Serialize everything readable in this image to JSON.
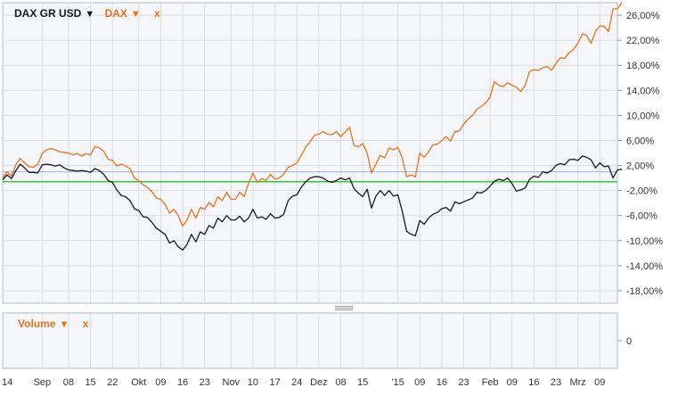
{
  "legend": {
    "series1_label": "DAX GR USD",
    "series1_arrow": "▼",
    "series2_label": "DAX",
    "series2_arrow": "▼",
    "close_label": "x",
    "volume_label": "Volume",
    "volume_arrow": "▼",
    "volume_close": "x"
  },
  "colors": {
    "series1": "#1a1a1a",
    "series2": "#e8731c",
    "baseline": "#33cc33",
    "refline": "#9db3d6",
    "grid": "#dcdcdc",
    "panel_bg": "#f4f6f9"
  },
  "chart_data": [
    {
      "type": "line",
      "ylim": [
        -20,
        28
      ],
      "y_ticks": [
        "26,00%",
        "22,00%",
        "18,00%",
        "14,00%",
        "10,00%",
        "6,00%",
        "2,00%",
        "-2,00%",
        "-6,00%",
        "-10,00%",
        "-14,00%",
        "-18,00%"
      ],
      "y_tick_values": [
        26,
        22,
        18,
        14,
        10,
        6,
        2,
        -2,
        -6,
        -10,
        -14,
        -18
      ],
      "x_ticks": [
        "14",
        "Sep",
        "08",
        "15",
        "22",
        "Okt",
        "09",
        "16",
        "23",
        "Nov",
        "10",
        "17",
        "24",
        "Dez",
        "08",
        "15",
        "'15",
        "09",
        "16",
        "23",
        "Feb",
        "09",
        "16",
        "23",
        "Mrz",
        "09"
      ],
      "x_tick_index": [
        0,
        9,
        15,
        20,
        25,
        31,
        36,
        41,
        46,
        52,
        57,
        62,
        67,
        72,
        77,
        82,
        90,
        95,
        100,
        105,
        111,
        116,
        121,
        126,
        131,
        136
      ],
      "x_count": 141,
      "reference_line": 1.0,
      "baseline": -0.6,
      "series": [
        {
          "name": "DAX GR USD",
          "values": [
            -0.3,
            0.5,
            -0.1,
            1.2,
            2.2,
            1.6,
            0.9,
            0.9,
            0.8,
            2.1,
            2.2,
            2.1,
            1.9,
            2.1,
            1.6,
            1.3,
            1.2,
            1.1,
            1.2,
            1.1,
            0.9,
            1.5,
            1.2,
            0.6,
            -0.4,
            -0.7,
            -1.9,
            -2.8,
            -3.0,
            -3.6,
            -4.9,
            -5.2,
            -6.2,
            -6.3,
            -7.1,
            -8.0,
            -8.5,
            -9.0,
            -10.4,
            -10.0,
            -11.0,
            -11.5,
            -10.6,
            -9.0,
            -10.2,
            -8.6,
            -9.0,
            -7.6,
            -8.0,
            -6.4,
            -7.0,
            -6.0,
            -6.7,
            -6.7,
            -6.1,
            -7.0,
            -6.4,
            -5.0,
            -6.4,
            -6.2,
            -6.6,
            -5.7,
            -6.4,
            -6.3,
            -5.8,
            -3.6,
            -2.9,
            -2.7,
            -1.5,
            -0.6,
            0.0,
            0.2,
            0.2,
            0.0,
            -0.5,
            -0.7,
            -0.4,
            0.0,
            -0.3,
            0.0,
            -1.7,
            -2.4,
            -3.0,
            -1.8,
            -4.8,
            -2.9,
            -2.0,
            -2.8,
            -2.0,
            -2.9,
            -2.7,
            -5.3,
            -8.5,
            -9.0,
            -9.2,
            -6.8,
            -7.4,
            -6.4,
            -5.8,
            -5.5,
            -4.9,
            -4.7,
            -5.3,
            -3.8,
            -4.1,
            -3.8,
            -3.5,
            -3.2,
            -2.3,
            -2.4,
            -2.0,
            -1.3,
            -0.5,
            -0.2,
            -0.4,
            0.0,
            -0.9,
            -2.1,
            -1.9,
            -1.6,
            -0.2,
            0.3,
            0.1,
            1.0,
            0.8,
            1.2,
            2.0,
            2.3,
            2.1,
            2.9,
            3.0,
            2.8,
            3.5,
            3.3,
            2.9,
            1.6,
            2.4,
            1.8,
            1.9,
            0.0,
            1.3,
            1.4
          ]
        },
        {
          "name": "DAX",
          "values": [
            0.0,
            1.0,
            0.3,
            2.1,
            3.1,
            2.4,
            1.8,
            1.7,
            2.2,
            3.9,
            4.5,
            4.7,
            4.5,
            4.2,
            4.1,
            4.0,
            3.7,
            3.9,
            3.5,
            3.9,
            3.7,
            5.0,
            4.8,
            4.3,
            3.0,
            2.8,
            1.9,
            2.2,
            1.9,
            1.5,
            0.0,
            -0.4,
            -1.1,
            -1.5,
            -2.2,
            -3.2,
            -3.4,
            -4.2,
            -5.6,
            -5.0,
            -6.0,
            -7.7,
            -6.7,
            -5.0,
            -6.4,
            -4.7,
            -5.0,
            -3.9,
            -4.6,
            -3.0,
            -3.6,
            -2.3,
            -3.4,
            -3.4,
            -2.3,
            -3.0,
            -0.8,
            0.8,
            -0.7,
            -0.1,
            -0.4,
            0.6,
            -0.2,
            0.0,
            0.6,
            1.7,
            2.0,
            2.4,
            3.6,
            4.9,
            5.8,
            6.8,
            7.0,
            7.4,
            7.0,
            6.9,
            7.4,
            6.6,
            7.3,
            8.1,
            5.2,
            5.0,
            5.5,
            4.0,
            0.8,
            2.2,
            3.6,
            3.2,
            4.8,
            4.5,
            4.9,
            3.2,
            0.2,
            0.5,
            0.2,
            4.0,
            3.3,
            4.2,
            5.3,
            5.4,
            6.0,
            6.6,
            5.9,
            7.4,
            7.5,
            8.6,
            9.4,
            10.0,
            11.0,
            11.4,
            12.0,
            12.9,
            15.4,
            14.8,
            14.6,
            15.2,
            14.8,
            14.5,
            13.8,
            14.8,
            17.0,
            17.3,
            17.2,
            17.6,
            17.8,
            17.2,
            18.3,
            19.2,
            19.1,
            20.0,
            20.5,
            21.5,
            23.0,
            22.8,
            21.5,
            23.4,
            24.3,
            24.2,
            23.4,
            27.0,
            27.0,
            28.0
          ]
        }
      ]
    },
    {
      "type": "bar",
      "y_ticks": [
        "0"
      ],
      "y_tick_values": [
        0
      ],
      "series": []
    }
  ]
}
